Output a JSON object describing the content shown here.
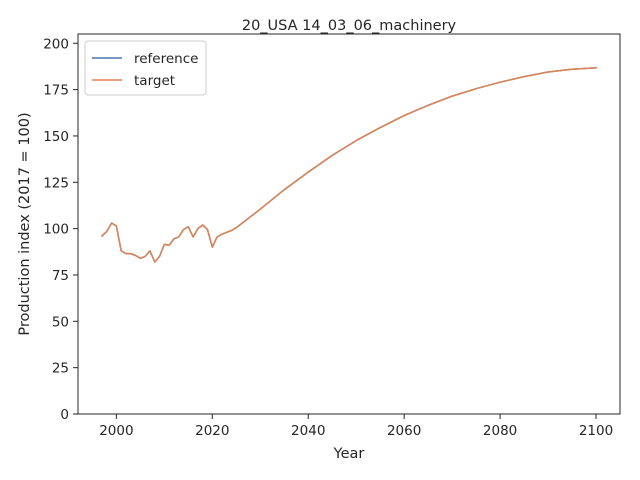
{
  "chart_data": {
    "type": "line",
    "title": "20_USA 14_03_06_machinery",
    "xlabel": "Year",
    "ylabel": "Production index (2017 = 100)",
    "xlim": [
      1992,
      2105
    ],
    "ylim": [
      0,
      205
    ],
    "xticks": [
      2000,
      2020,
      2040,
      2060,
      2080,
      2100
    ],
    "yticks": [
      0,
      25,
      50,
      75,
      100,
      125,
      150,
      175,
      200
    ],
    "grid": false,
    "legend_position": "top-left",
    "colors": {
      "reference": "#4c72b0",
      "target": "#dd8452",
      "axis": "#262626"
    },
    "series": [
      {
        "name": "reference",
        "x": [
          1997,
          1998,
          1999,
          2000,
          2001,
          2002,
          2003,
          2004,
          2005,
          2006,
          2007,
          2008,
          2009,
          2010,
          2011,
          2012,
          2013,
          2014,
          2015,
          2016,
          2017,
          2018,
          2019,
          2020,
          2021,
          2022,
          2023,
          2024,
          2025,
          2026,
          2027,
          2028,
          2029,
          2030,
          2035,
          2040,
          2045,
          2050,
          2055,
          2060,
          2065,
          2070,
          2075,
          2080,
          2085,
          2090,
          2095,
          2100
        ],
        "y": [
          96,
          98.5,
          103,
          101.5,
          88,
          86.5,
          86.5,
          85.5,
          84,
          85,
          88,
          82,
          85,
          91.5,
          91,
          94.5,
          95.5,
          99.5,
          101,
          95.5,
          100,
          102,
          99.5,
          90,
          95.5,
          97,
          98,
          99,
          100.5,
          102.5,
          104.5,
          106.5,
          108.5,
          110.5,
          121,
          130.5,
          139.5,
          147.5,
          154.5,
          161,
          166.5,
          171.5,
          175.5,
          179,
          182,
          184.5,
          186,
          186.8
        ]
      },
      {
        "name": "target",
        "x": [
          1997,
          1998,
          1999,
          2000,
          2001,
          2002,
          2003,
          2004,
          2005,
          2006,
          2007,
          2008,
          2009,
          2010,
          2011,
          2012,
          2013,
          2014,
          2015,
          2016,
          2017,
          2018,
          2019,
          2020,
          2021,
          2022,
          2023,
          2024,
          2025,
          2026,
          2027,
          2028,
          2029,
          2030,
          2035,
          2040,
          2045,
          2050,
          2055,
          2060,
          2065,
          2070,
          2075,
          2080,
          2085,
          2090,
          2095,
          2100
        ],
        "y": [
          96,
          98.5,
          103,
          101.5,
          88,
          86.5,
          86.5,
          85.5,
          84,
          85,
          88,
          82,
          85,
          91.5,
          91,
          94.5,
          95.5,
          99.5,
          101,
          95.5,
          100,
          102,
          99.5,
          90,
          95.5,
          97,
          98,
          99,
          100.5,
          102.5,
          104.5,
          106.5,
          108.5,
          110.5,
          121,
          130.5,
          139.5,
          147.5,
          154.5,
          161,
          166.5,
          171.5,
          175.5,
          179,
          182,
          184.5,
          186,
          186.8
        ]
      }
    ]
  }
}
